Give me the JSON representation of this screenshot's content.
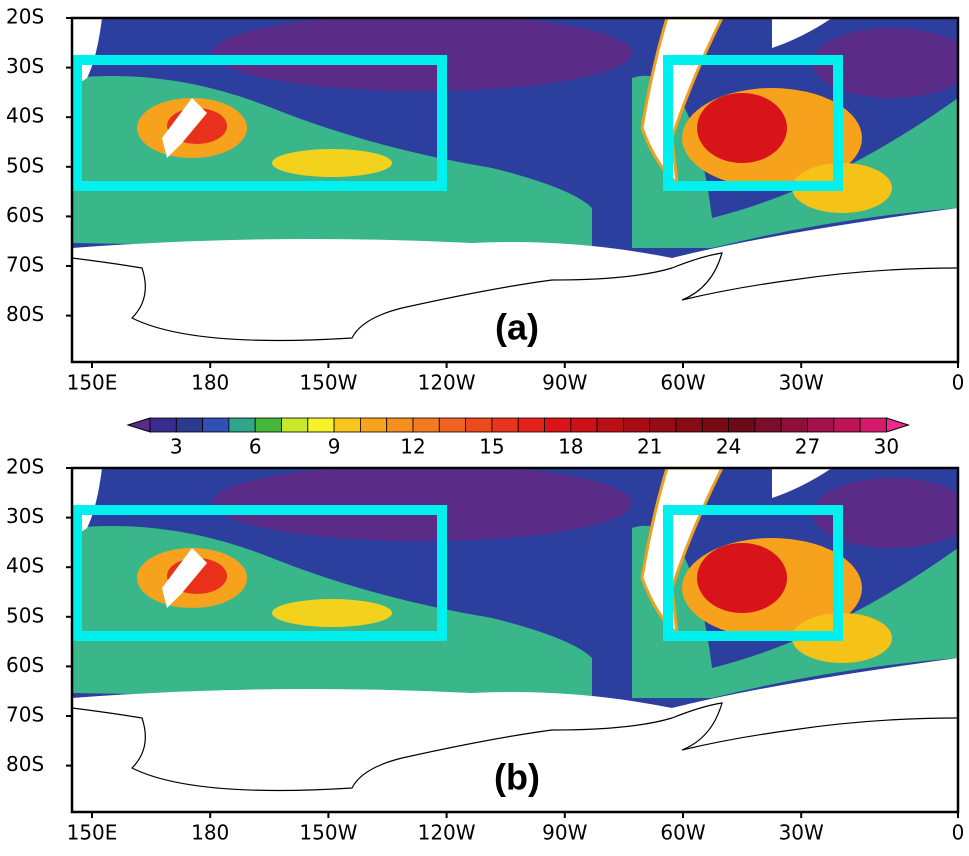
{
  "panels": [
    {
      "label": "(a)",
      "lat_labels": [
        "20S",
        "30S",
        "40S",
        "50S",
        "60S",
        "70S",
        "80S"
      ],
      "lon_labels": [
        "150E",
        "180",
        "150W",
        "120W",
        "90W",
        "60W",
        "30W",
        "0"
      ]
    },
    {
      "label": "(b)",
      "lat_labels": [
        "20S",
        "30S",
        "40S",
        "50S",
        "60S",
        "70S",
        "80S"
      ],
      "lon_labels": [
        "150E",
        "180",
        "150W",
        "120W",
        "90W",
        "60W",
        "30W",
        "0"
      ]
    }
  ],
  "colorbar": {
    "labels": [
      3,
      6,
      9,
      12,
      15,
      18,
      21,
      24,
      27,
      30
    ]
  }
}
